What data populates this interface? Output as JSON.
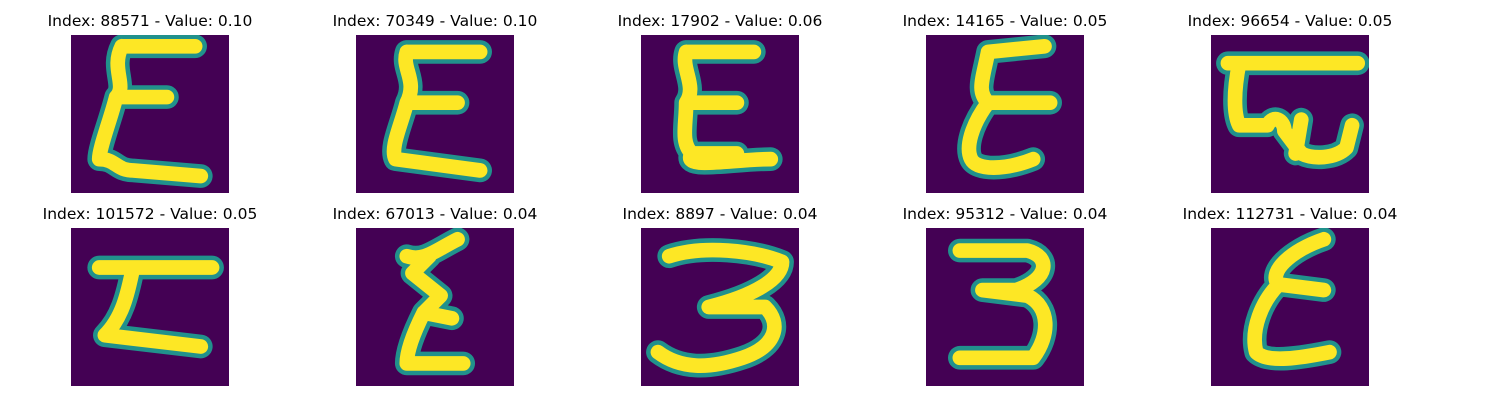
{
  "colors": {
    "background": "#440154",
    "ink": "#fde725",
    "edge": "#21918c"
  },
  "panels": [
    {
      "title": "Index: 88571 - Value: 0.10",
      "glyph": "E-zigzag-1"
    },
    {
      "title": "Index: 70349 - Value: 0.10",
      "glyph": "E-zigzag-2"
    },
    {
      "title": "Index: 17902 - Value: 0.06",
      "glyph": "E-zigzag-3"
    },
    {
      "title": "Index: 14165 - Value: 0.05",
      "glyph": "E-narrow"
    },
    {
      "title": "Index: 96654 - Value: 0.05",
      "glyph": "E-boxy"
    },
    {
      "title": "Index: 101572 - Value: 0.05",
      "glyph": "E-wide"
    },
    {
      "title": "Index: 67013 - Value: 0.04",
      "glyph": "E-thin"
    },
    {
      "title": "Index: 8897 - Value: 0.04",
      "glyph": "3-wide"
    },
    {
      "title": "Index: 95312 - Value: 0.04",
      "glyph": "3-narrow"
    },
    {
      "title": "Index: 112731 - Value: 0.04",
      "glyph": "E-cursive"
    }
  ]
}
